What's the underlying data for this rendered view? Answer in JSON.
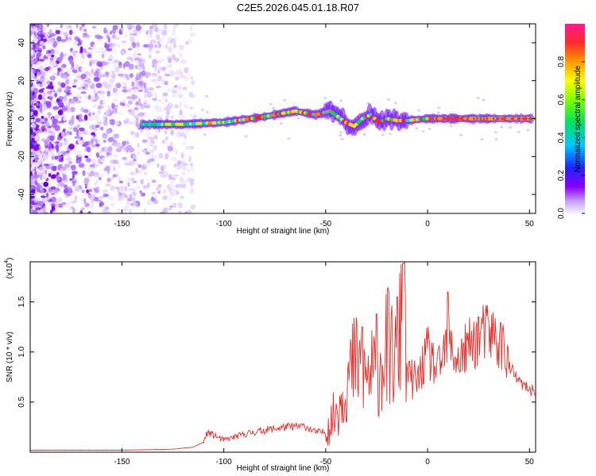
{
  "title": "C2E5.2026.045.01.18.R07",
  "chart_data": [
    {
      "type": "heatmap",
      "xlabel": "Height of straight line (km)",
      "ylabel": "Frequency (Hz)",
      "xlim": [
        -195,
        53
      ],
      "ylim": [
        -50,
        50
      ],
      "xticks": [
        -150,
        -100,
        -50,
        0,
        50
      ],
      "yticks": [
        -40,
        -20,
        0,
        20,
        40
      ],
      "xtick_labels": [
        "-150",
        "-100",
        "-50",
        "0",
        "50"
      ],
      "ytick_labels": [
        "-40",
        "-20",
        "0",
        "20",
        "40"
      ],
      "colorbar": {
        "label": "Normalized spectral amplitude",
        "range": [
          0,
          1
        ],
        "ticks": [
          "0.0",
          "0.2",
          "0.4",
          "0.6",
          "0.8"
        ],
        "tick_values": [
          0.0,
          0.2,
          0.4,
          0.6,
          0.8
        ],
        "colors": [
          "#f4efff",
          "#8b00ff",
          "#1a20ff",
          "#00e5ff",
          "#00e040",
          "#ffff00",
          "#ff9000",
          "#ff2040",
          "#ff2090"
        ]
      },
      "ridge": {
        "x": [
          -140,
          -120,
          -100,
          -80,
          -65,
          -55,
          -48,
          -44,
          -40,
          -36,
          -32,
          -28,
          -24,
          -20,
          -15,
          -10,
          0,
          20,
          52
        ],
        "y": [
          -3,
          -3,
          -2,
          1,
          4,
          2,
          4,
          1,
          -2,
          -4,
          0,
          2,
          -2,
          0,
          -1,
          -1,
          0,
          0,
          0
        ]
      }
    },
    {
      "type": "line",
      "xlabel": "Height of straight line (km)",
      "ylabel": "SNR (10 * v/v)",
      "y_multiplier": "(x10",
      "y_exponent": "4",
      "xlim": [
        -195,
        53
      ],
      "ylim": [
        0,
        1.9
      ],
      "xticks": [
        -150,
        -100,
        -50,
        0,
        50
      ],
      "yticks": [
        0.5,
        1.0,
        1.5
      ],
      "xtick_labels": [
        "-150",
        "-100",
        "-50",
        "0",
        "50"
      ],
      "ytick_labels": [
        "0.5",
        "1.0",
        "1.5"
      ],
      "color": "#e8302c",
      "series": {
        "x": [
          -195,
          -150,
          -125,
          -115,
          -110,
          -108,
          -100,
          -90,
          -80,
          -70,
          -60,
          -55,
          -50,
          -45,
          -40,
          -35,
          -30,
          -25,
          -20,
          -15,
          -12,
          -10,
          -5,
          0,
          5,
          10,
          15,
          20,
          25,
          30,
          35,
          38,
          40,
          45,
          50,
          53
        ],
        "y": [
          0.02,
          0.02,
          0.03,
          0.05,
          0.1,
          0.2,
          0.12,
          0.18,
          0.22,
          0.25,
          0.26,
          0.2,
          0.2,
          0.4,
          0.7,
          0.9,
          0.75,
          0.8,
          1.05,
          0.9,
          1.5,
          0.75,
          0.7,
          1.0,
          0.8,
          1.1,
          0.9,
          1.05,
          1.15,
          1.2,
          1.1,
          1.05,
          0.85,
          0.7,
          0.62,
          0.62
        ],
        "peaks": [
          {
            "x": -32,
            "y": 1.25
          },
          {
            "x": -25,
            "y": 1.38
          },
          {
            "x": -15,
            "y": 1.55
          },
          {
            "x": -12,
            "y": 1.88
          },
          {
            "x": 10,
            "y": 1.6
          },
          {
            "x": 25,
            "y": 1.35
          }
        ]
      }
    }
  ]
}
